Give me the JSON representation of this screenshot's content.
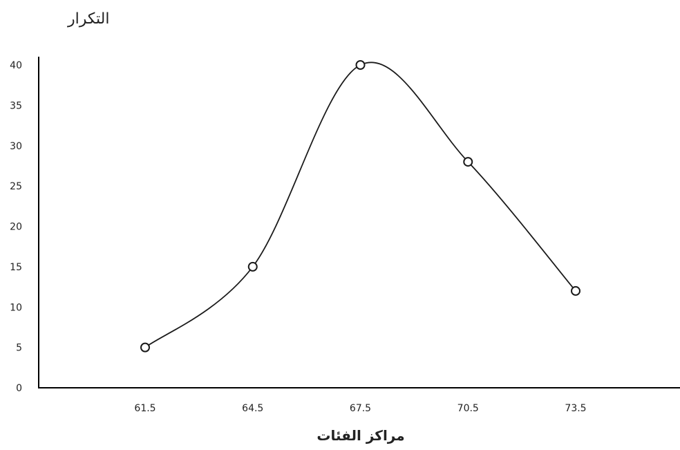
{
  "chart_data": {
    "type": "line",
    "smooth": true,
    "markers": "hollow-circle",
    "title": "",
    "xlabel": "مراكز الفئات",
    "ylabel": "التكرار",
    "x": [
      "61.5",
      "64.5",
      "67.5",
      "70.5",
      "73.5"
    ],
    "y": [
      5,
      15,
      40,
      28,
      12
    ],
    "yticks": [
      "0",
      "5",
      "10",
      "15",
      "20",
      "25",
      "30",
      "35",
      "40"
    ],
    "ylim": [
      0,
      40
    ],
    "grid": false,
    "legend": "none",
    "colors": {
      "line": "#1a1a1a",
      "axis": "#000000",
      "marker_fill": "#ffffff"
    }
  }
}
